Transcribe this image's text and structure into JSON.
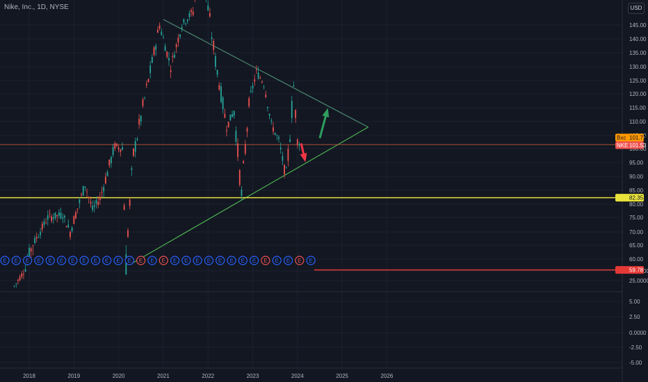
{
  "header": {
    "title": "Nike, Inc., 1D, NYSE"
  },
  "currency": "USD",
  "colors": {
    "background": "#131722",
    "up": "#26a69a",
    "down": "#ef5350",
    "trendline_upper": "#4a8a70",
    "trendline_lower": "#4caf50",
    "support": "#e8e23a",
    "low_line": "#e53935",
    "price_line": "#c25a3a",
    "arrow_up": "#2e9e5e",
    "arrow_down": "#f23645"
  },
  "chart_data": {
    "type": "candlestick",
    "title": "Nike, Inc., 1D, NYSE",
    "x_ticks": [
      "2018",
      "2019",
      "2020",
      "2021",
      "2022",
      "2023",
      "2024",
      "2025",
      "2026"
    ],
    "y_ticks": [
      "145.00",
      "140.00",
      "135.00",
      "130.00",
      "125.00",
      "120.00",
      "115.00",
      "110.00",
      "105.00",
      "100.00",
      "95.00",
      "90.00",
      "85.00",
      "80.00",
      "75.00",
      "70.00",
      "65.00",
      "60.00",
      "50.0000",
      "25.0000",
      "5.00",
      "2.50",
      "0.0000",
      "-2.50",
      "-5.00"
    ],
    "ylim": [
      -5,
      150
    ],
    "price_path": [
      {
        "date": "2017-09",
        "close": 52
      },
      {
        "date": "2018-01",
        "close": 63
      },
      {
        "date": "2018-06",
        "close": 75
      },
      {
        "date": "2018-10",
        "close": 76
      },
      {
        "date": "2018-12",
        "close": 70
      },
      {
        "date": "2019-04",
        "close": 87
      },
      {
        "date": "2019-06",
        "close": 78
      },
      {
        "date": "2019-08",
        "close": 82
      },
      {
        "date": "2019-12",
        "close": 101
      },
      {
        "date": "2020-02",
        "close": 100
      },
      {
        "date": "2020-03",
        "close": 61
      },
      {
        "date": "2020-05",
        "close": 98
      },
      {
        "date": "2020-09",
        "close": 125
      },
      {
        "date": "2020-12",
        "close": 145
      },
      {
        "date": "2021-03",
        "close": 130
      },
      {
        "date": "2021-06",
        "close": 145
      },
      {
        "date": "2021-09",
        "close": 150
      },
      {
        "date": "2021-11",
        "close": 172
      },
      {
        "date": "2021-12",
        "close": 160
      },
      {
        "date": "2022-03",
        "close": 132
      },
      {
        "date": "2022-06",
        "close": 108
      },
      {
        "date": "2022-08",
        "close": 114
      },
      {
        "date": "2022-10",
        "close": 83
      },
      {
        "date": "2022-12",
        "close": 117
      },
      {
        "date": "2023-02",
        "close": 128
      },
      {
        "date": "2023-04",
        "close": 124
      },
      {
        "date": "2023-06",
        "close": 109
      },
      {
        "date": "2023-08",
        "close": 103
      },
      {
        "date": "2023-10",
        "close": 89
      },
      {
        "date": "2023-12",
        "close": 123
      },
      {
        "date": "2024-01",
        "close": 103
      },
      {
        "date": "2024-02",
        "close": 101.53
      }
    ],
    "trendlines": [
      {
        "name": "upper",
        "from": {
          "date": "2021-01",
          "value": 147
        },
        "to": {
          "date": "2025-08",
          "value": 108
        }
      },
      {
        "name": "lower",
        "from": {
          "date": "2020-04",
          "value": 61
        },
        "to": {
          "date": "2025-08",
          "value": 108
        }
      }
    ],
    "horizontal_lines": [
      {
        "label": "82.35",
        "value": 82.35
      },
      {
        "label": "59.78",
        "value": 59.78
      },
      {
        "value": 101.53
      }
    ],
    "arrows": [
      {
        "direction": "up",
        "from": {
          "date": "2024-07",
          "value": 104
        },
        "to": {
          "date": "2024-09",
          "value": 114
        }
      },
      {
        "direction": "down",
        "from": {
          "date": "2024-02",
          "value": 102
        },
        "to": {
          "date": "2024-03",
          "value": 96
        }
      }
    ],
    "price_labels": [
      {
        "tag": "Bxc",
        "value": "101.72"
      },
      {
        "tag": "NKE",
        "value": "101.53"
      }
    ],
    "earnings_markers": {
      "glyph": "E",
      "count": 28
    }
  }
}
